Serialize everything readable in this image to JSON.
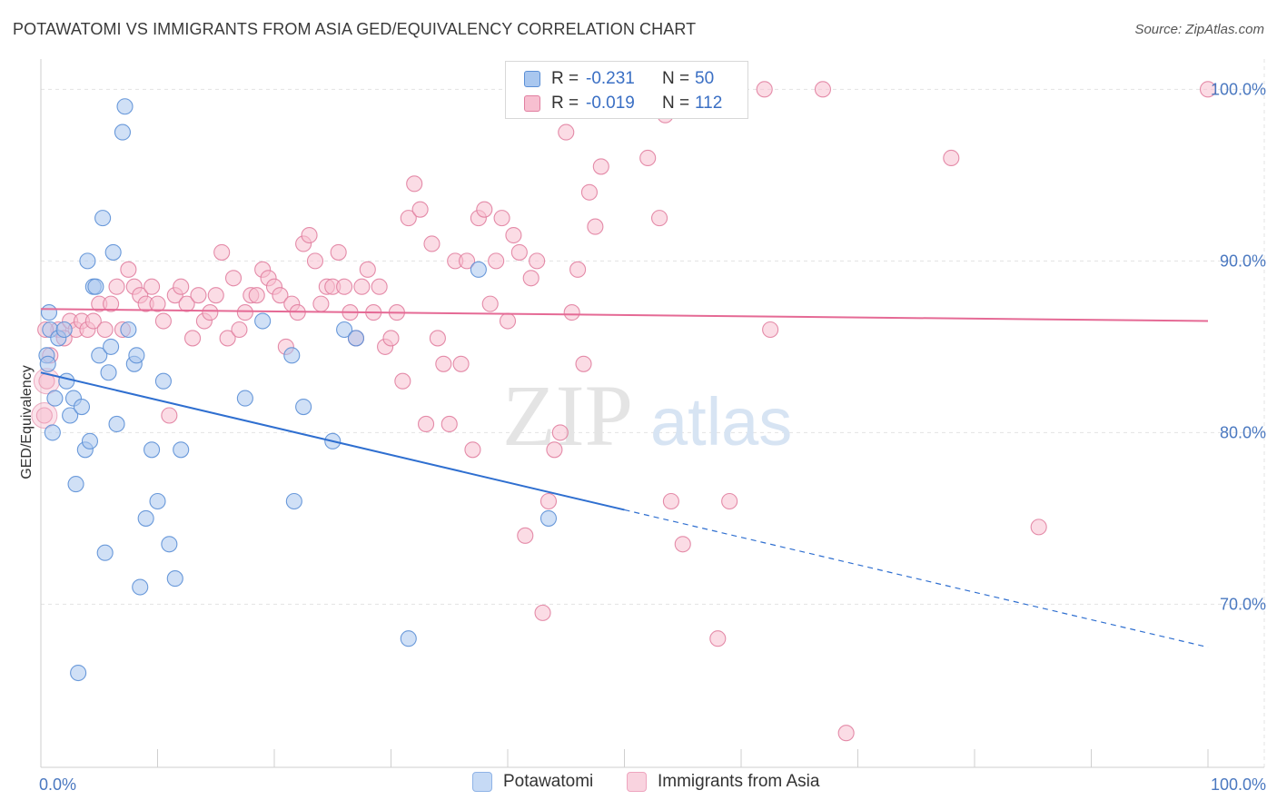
{
  "title": "POTAWATOMI VS IMMIGRANTS FROM ASIA GED/EQUIVALENCY CORRELATION CHART",
  "source": "Source: ZipAtlas.com",
  "watermark": {
    "zip": "ZIP",
    "atlas": "atlas"
  },
  "legend": {
    "rows": [
      {
        "r_label": "R =",
        "r_value": "-0.231",
        "n_label": "N =",
        "n_value": "50"
      },
      {
        "r_label": "R =",
        "r_value": "-0.019",
        "n_label": "N =",
        "n_value": "112"
      }
    ]
  },
  "colors": {
    "blue_fill": "#a9c7ef",
    "blue_stroke": "#5b8fd6",
    "blue_line": "#2f6fd0",
    "pink_fill": "#f7bfd0",
    "pink_stroke": "#e17fa0",
    "pink_line": "#e56a95",
    "grid": "#e3e3e3",
    "tick_text": "#4a78c0"
  },
  "chart_data": {
    "type": "scatter",
    "title": "POTAWATOMI VS IMMIGRANTS FROM ASIA GED/EQUIVALENCY CORRELATION CHART",
    "xlabel": "",
    "ylabel": "GED/Equivalency",
    "xlim": [
      0,
      100
    ],
    "ylim": [
      60.5,
      101.5
    ],
    "x_tick_labels": [
      "0.0%",
      "100.0%"
    ],
    "y_ticks": [
      {
        "value": 70,
        "label": "70.0%"
      },
      {
        "value": 80,
        "label": "80.0%"
      },
      {
        "value": 90,
        "label": "90.0%"
      },
      {
        "value": 100,
        "label": "100.0%"
      }
    ],
    "grid": true,
    "legend_position": "top-center",
    "series": [
      {
        "name": "Potawatomi",
        "color": "#a9c7ef",
        "trend": {
          "x0": 0,
          "y0": 83.5,
          "x1": 50,
          "y1": 75.5,
          "dash_to_x": 100,
          "dash_to_y": 67.5
        },
        "points": [
          [
            0.5,
            84.5
          ],
          [
            0.6,
            84.0
          ],
          [
            0.7,
            87.0
          ],
          [
            0.8,
            86.0
          ],
          [
            1.0,
            80.0
          ],
          [
            1.2,
            82.0
          ],
          [
            1.5,
            85.5
          ],
          [
            2.0,
            86.0
          ],
          [
            2.2,
            83.0
          ],
          [
            2.5,
            81.0
          ],
          [
            2.8,
            82.0
          ],
          [
            3.0,
            77.0
          ],
          [
            3.2,
            66.0
          ],
          [
            3.5,
            81.5
          ],
          [
            3.8,
            79.0
          ],
          [
            4.0,
            90.0
          ],
          [
            4.2,
            79.5
          ],
          [
            4.5,
            88.5
          ],
          [
            4.7,
            88.5
          ],
          [
            5.0,
            84.5
          ],
          [
            5.3,
            92.5
          ],
          [
            5.5,
            73.0
          ],
          [
            5.8,
            83.5
          ],
          [
            6.0,
            85.0
          ],
          [
            6.2,
            90.5
          ],
          [
            6.5,
            80.5
          ],
          [
            7.0,
            97.5
          ],
          [
            7.2,
            99.0
          ],
          [
            7.5,
            86.0
          ],
          [
            8.0,
            84.0
          ],
          [
            8.2,
            84.5
          ],
          [
            8.5,
            71.0
          ],
          [
            9.0,
            75.0
          ],
          [
            9.5,
            79.0
          ],
          [
            10.0,
            76.0
          ],
          [
            10.5,
            83.0
          ],
          [
            11.0,
            73.5
          ],
          [
            11.5,
            71.5
          ],
          [
            12.0,
            79.0
          ],
          [
            17.5,
            82.0
          ],
          [
            19.0,
            86.5
          ],
          [
            21.5,
            84.5
          ],
          [
            21.7,
            76.0
          ],
          [
            22.5,
            81.5
          ],
          [
            25.0,
            79.5
          ],
          [
            26.0,
            86.0
          ],
          [
            27.0,
            85.5
          ],
          [
            31.5,
            68.0
          ],
          [
            37.5,
            89.5
          ],
          [
            43.5,
            75.0
          ]
        ]
      },
      {
        "name": "Immigrants from Asia",
        "color": "#f7bfd0",
        "trend": {
          "x0": 0,
          "y0": 87.2,
          "x1": 100,
          "y1": 86.5
        },
        "points": [
          [
            0.3,
            81.0
          ],
          [
            0.5,
            83.0
          ],
          [
            0.8,
            84.5
          ],
          [
            1.5,
            86.0
          ],
          [
            2.0,
            85.5
          ],
          [
            2.5,
            86.5
          ],
          [
            3.0,
            86.0
          ],
          [
            3.5,
            86.5
          ],
          [
            4.0,
            86.0
          ],
          [
            4.5,
            86.5
          ],
          [
            5.0,
            87.5
          ],
          [
            5.5,
            86.0
          ],
          [
            6.0,
            87.5
          ],
          [
            6.5,
            88.5
          ],
          [
            7.0,
            86.0
          ],
          [
            7.5,
            89.5
          ],
          [
            8.0,
            88.5
          ],
          [
            8.5,
            88.0
          ],
          [
            9.0,
            87.5
          ],
          [
            9.5,
            88.5
          ],
          [
            10.0,
            87.5
          ],
          [
            10.5,
            86.5
          ],
          [
            11.0,
            81.0
          ],
          [
            11.5,
            88.0
          ],
          [
            12.0,
            88.5
          ],
          [
            12.5,
            87.5
          ],
          [
            13.0,
            85.5
          ],
          [
            13.5,
            88.0
          ],
          [
            14.0,
            86.5
          ],
          [
            14.5,
            87.0
          ],
          [
            15.0,
            88.0
          ],
          [
            15.5,
            90.5
          ],
          [
            16.0,
            85.5
          ],
          [
            16.5,
            89.0
          ],
          [
            17.0,
            86.0
          ],
          [
            17.5,
            87.0
          ],
          [
            18.0,
            88.0
          ],
          [
            18.5,
            88.0
          ],
          [
            19.0,
            89.5
          ],
          [
            19.5,
            89.0
          ],
          [
            20.0,
            88.5
          ],
          [
            20.5,
            88.0
          ],
          [
            21.0,
            85.0
          ],
          [
            21.5,
            87.5
          ],
          [
            22.0,
            87.0
          ],
          [
            22.5,
            91.0
          ],
          [
            23.0,
            91.5
          ],
          [
            23.5,
            90.0
          ],
          [
            24.0,
            87.5
          ],
          [
            24.5,
            88.5
          ],
          [
            25.0,
            88.5
          ],
          [
            25.5,
            90.5
          ],
          [
            26.0,
            88.5
          ],
          [
            26.5,
            87.0
          ],
          [
            27.0,
            85.5
          ],
          [
            27.5,
            88.5
          ],
          [
            28.0,
            89.5
          ],
          [
            28.5,
            87.0
          ],
          [
            29.0,
            88.5
          ],
          [
            29.5,
            85.0
          ],
          [
            30.0,
            85.5
          ],
          [
            30.5,
            87.0
          ],
          [
            31.0,
            83.0
          ],
          [
            31.5,
            92.5
          ],
          [
            32.0,
            94.5
          ],
          [
            32.5,
            93.0
          ],
          [
            33.0,
            80.5
          ],
          [
            33.5,
            91.0
          ],
          [
            34.0,
            85.5
          ],
          [
            34.5,
            84.0
          ],
          [
            35.0,
            80.5
          ],
          [
            35.5,
            90.0
          ],
          [
            36.0,
            84.0
          ],
          [
            36.5,
            90.0
          ],
          [
            37.0,
            79.0
          ],
          [
            37.5,
            92.5
          ],
          [
            38.0,
            93.0
          ],
          [
            38.5,
            87.5
          ],
          [
            39.0,
            90.0
          ],
          [
            39.5,
            92.5
          ],
          [
            40.0,
            86.5
          ],
          [
            40.5,
            91.5
          ],
          [
            41.0,
            90.5
          ],
          [
            41.5,
            74.0
          ],
          [
            42.0,
            89.0
          ],
          [
            42.5,
            90.0
          ],
          [
            43.0,
            69.5
          ],
          [
            43.5,
            76.0
          ],
          [
            44.0,
            79.0
          ],
          [
            44.5,
            80.0
          ],
          [
            45.0,
            97.5
          ],
          [
            45.5,
            87.0
          ],
          [
            46.0,
            89.5
          ],
          [
            46.5,
            84.0
          ],
          [
            47.0,
            94.0
          ],
          [
            47.5,
            92.0
          ],
          [
            48.0,
            95.5
          ],
          [
            52.0,
            96.0
          ],
          [
            53.0,
            92.5
          ],
          [
            53.5,
            98.5
          ],
          [
            54.0,
            76.0
          ],
          [
            55.0,
            73.5
          ],
          [
            58.0,
            68.0
          ],
          [
            59.0,
            76.0
          ],
          [
            62.0,
            100.0
          ],
          [
            62.5,
            86.0
          ],
          [
            67.0,
            100.0
          ],
          [
            69.0,
            62.5
          ],
          [
            78.0,
            96.0
          ],
          [
            85.5,
            74.5
          ],
          [
            100.0,
            100.0
          ],
          [
            0.4,
            86.0
          ]
        ]
      }
    ]
  },
  "bottom_legend": {
    "items": [
      {
        "label": "Potawatomi"
      },
      {
        "label": "Immigrants from Asia"
      }
    ]
  }
}
